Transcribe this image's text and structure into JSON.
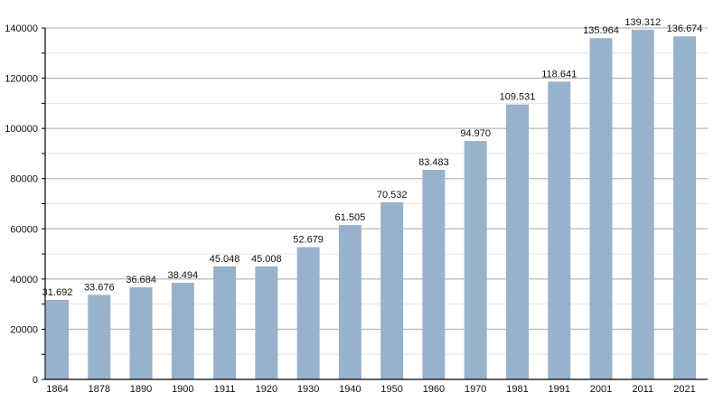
{
  "chart_data": {
    "type": "bar",
    "title": "",
    "xlabel": "",
    "ylabel": "",
    "ylim": [
      0,
      140000
    ],
    "yticks": [
      0,
      20000,
      40000,
      60000,
      80000,
      100000,
      120000,
      140000
    ],
    "grid": true,
    "categories": [
      "1864",
      "1878",
      "1890",
      "1900",
      "1911",
      "1920",
      "1930",
      "1940",
      "1950",
      "1960",
      "1970",
      "1981",
      "1991",
      "2001",
      "2011",
      "2021"
    ],
    "values": [
      31692,
      33676,
      36684,
      38494,
      45048,
      45008,
      52679,
      61505,
      70532,
      83483,
      94970,
      109531,
      118641,
      135964,
      139312,
      136674
    ],
    "data_labels": [
      "31.692",
      "33.676",
      "36.684",
      "38.494",
      "45.048",
      "45.008",
      "52.679",
      "61.505",
      "70.532",
      "83.483",
      "94.970",
      "109.531",
      "118.641",
      "135.964",
      "139.312",
      "136.674"
    ],
    "bar_color": "#98b2cb"
  }
}
